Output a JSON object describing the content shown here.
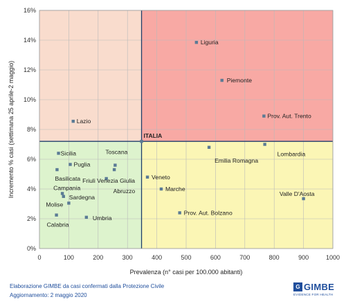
{
  "chart_data": {
    "type": "scatter",
    "title": "",
    "xlabel": "Prevalenza  (n° casi per 100.000 abitanti)",
    "ylabel": "Incremento %  casi (settimana 25 aprile-2 maggio)",
    "xlim": [
      0,
      1000
    ],
    "ylim": [
      0,
      16
    ],
    "x_ticks": [
      0,
      100,
      200,
      300,
      400,
      500,
      600,
      700,
      800,
      900,
      1000
    ],
    "y_ticks": [
      0,
      2,
      4,
      6,
      8,
      10,
      12,
      14,
      16
    ],
    "y_tick_format": "percent",
    "grid": true,
    "reference": {
      "name": "ITALIA",
      "x": 348,
      "y": 7.2
    },
    "quadrant_colors": {
      "top_left": "#f9dccd",
      "top_right": "#f8a9a4",
      "bottom_left": "#ddf3cd",
      "bottom_right": "#fbf6b5"
    },
    "point_color": "#5b7b95",
    "reference_line_color": "#1f3f6b",
    "points": [
      {
        "label": "Liguria",
        "x": 535,
        "y": 13.85
      },
      {
        "label": "Piemonte",
        "x": 622,
        "y": 11.3
      },
      {
        "label": "Prov. Aut. Trento",
        "x": 765,
        "y": 8.9
      },
      {
        "label": "Lazio",
        "x": 115,
        "y": 8.55
      },
      {
        "label": "Lombardia",
        "x": 768,
        "y": 7.0
      },
      {
        "label": "Emilia Romagna",
        "x": 578,
        "y": 6.8
      },
      {
        "label": "Sicilia",
        "x": 65,
        "y": 6.4
      },
      {
        "label": "Toscana",
        "x": 258,
        "y": 5.6
      },
      {
        "label": "Puglia",
        "x": 105,
        "y": 5.65
      },
      {
        "label": "Basilicata",
        "x": 60,
        "y": 5.3
      },
      {
        "label": "Friuli Venezia Giulia",
        "x": 255,
        "y": 5.3
      },
      {
        "label": "Veneto",
        "x": 368,
        "y": 4.8
      },
      {
        "label": "Abruzzo",
        "x": 228,
        "y": 4.7
      },
      {
        "label": "Marche",
        "x": 415,
        "y": 4.0
      },
      {
        "label": "Campania",
        "x": 78,
        "y": 3.7
      },
      {
        "label": "Sardegna",
        "x": 82,
        "y": 3.5
      },
      {
        "label": "Valle D'Aosta",
        "x": 900,
        "y": 3.35
      },
      {
        "label": "Molise",
        "x": 100,
        "y": 3.05
      },
      {
        "label": "Prov. Aut. Bolzano",
        "x": 478,
        "y": 2.4
      },
      {
        "label": "Calabria",
        "x": 58,
        "y": 2.25
      },
      {
        "label": "Umbria",
        "x": 160,
        "y": 2.1
      }
    ]
  },
  "footer": {
    "line1": "Elaborazione GIMBE da casi confermati dalla Protezione Civile",
    "line2": "Aggiornamento: 2 maggio 2020"
  },
  "logo": {
    "mark": "G",
    "name": "GIMBE",
    "tagline": "EVIDENCE FOR HEALTH"
  }
}
